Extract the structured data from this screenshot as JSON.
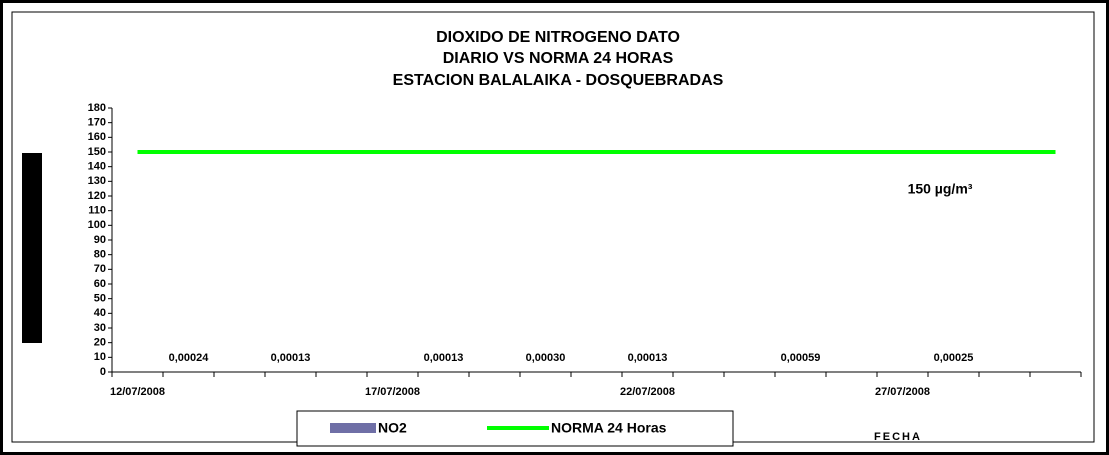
{
  "chart_data": {
    "type": "bar",
    "title": [
      "DIOXIDO DE NITROGENO DATO",
      "DIARIO VS NORMA 24 HORAS",
      "ESTACION BALALAIKA - DOSQUEBRADAS"
    ],
    "x_label": "FECHA",
    "annotation": "150 µg/m³",
    "categories": [
      "12/07/2008",
      null,
      null,
      null,
      null,
      "17/07/2008",
      null,
      null,
      null,
      null,
      "22/07/2008",
      null,
      null,
      null,
      null,
      "27/07/2008",
      null,
      null,
      null
    ],
    "series": [
      {
        "name": "NO2",
        "type": "bar",
        "color": "#6f6fa6",
        "values": [
          null,
          0.00024,
          null,
          0.00013,
          null,
          null,
          0.00013,
          null,
          0.0003,
          null,
          0.00013,
          null,
          null,
          0.00059,
          null,
          null,
          0.00025,
          null,
          null
        ],
        "value_labels": [
          null,
          "0,00024",
          null,
          "0,00013",
          null,
          null,
          "0,00013",
          null,
          "0,00030",
          null,
          "0,00013",
          null,
          null,
          "0,00059",
          null,
          null,
          "0,00025",
          null,
          null
        ]
      },
      {
        "name": "NORMA 24 Horas",
        "type": "line",
        "color": "#00ff00",
        "values": [
          150,
          150,
          150,
          150,
          150,
          150,
          150,
          150,
          150,
          150,
          150,
          150,
          150,
          150,
          150,
          150,
          150,
          150,
          150
        ]
      }
    ],
    "ylim": [
      0,
      180
    ],
    "yticks": [
      0,
      10,
      20,
      30,
      40,
      50,
      60,
      70,
      80,
      90,
      100,
      110,
      120,
      130,
      140,
      150,
      160,
      170,
      180
    ],
    "grid": false
  }
}
